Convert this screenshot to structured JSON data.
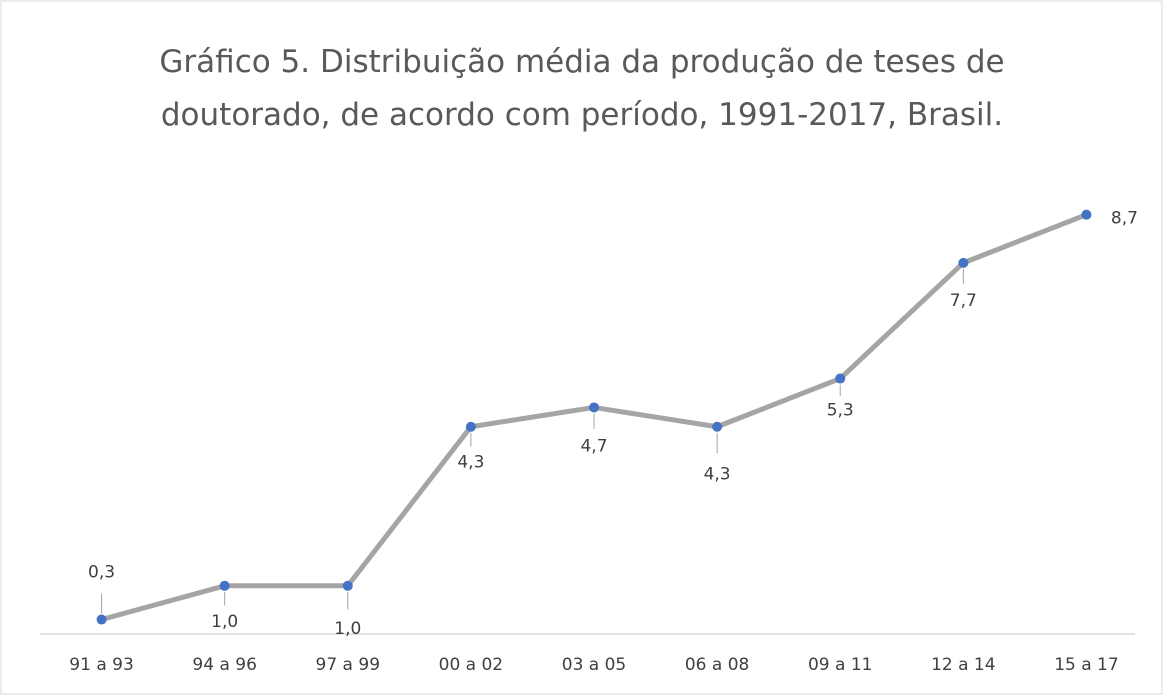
{
  "chart_data": {
    "type": "line",
    "title": "Gráfico 5. Distribuição média da produção de teses de doutorado, de acordo com período, 1991-2017, Brasil.",
    "categories": [
      "91 a 93",
      "94 a 96",
      "97 a 99",
      "00 a 02",
      "03 a 05",
      "06 a 08",
      "09 a 11",
      "12 a 14",
      "15 a 17"
    ],
    "series": [
      {
        "name": null,
        "color": "#a5a5a5",
        "marker_color": "#4472c4",
        "values": [
          0.3,
          1.0,
          1.0,
          4.3,
          4.7,
          4.3,
          5.3,
          7.7,
          8.7
        ],
        "value_labels": [
          "0,3",
          "1,0",
          "1,0",
          "4,3",
          "4,7",
          "4,3",
          "5,3",
          "7,7",
          "8,7"
        ]
      }
    ],
    "ylim": [
      0,
      10
    ],
    "grid": false
  }
}
